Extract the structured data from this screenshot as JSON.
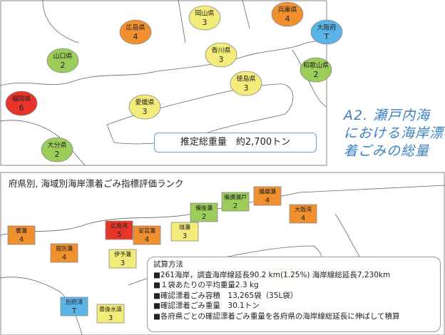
{
  "side_title": "A2. 瀬戸内海における海岸漂着ごみの総量",
  "total_box": "推定総重量　約2,700トン",
  "bottom_title": "府県別, 海域別海岸漂着ごみ指標評価ランク",
  "top_map": {
    "labels": [
      {
        "name": "福岡県",
        "rank": "6",
        "color": "#e8352a"
      },
      {
        "name": "山口県",
        "rank": "2",
        "color": "#9ccc5a"
      },
      {
        "name": "広島県",
        "rank": "4",
        "color": "#f0902e"
      },
      {
        "name": "岡山県",
        "rank": "3",
        "color": "#f3ec7a"
      },
      {
        "name": "兵庫県",
        "rank": "4",
        "color": "#f0902e"
      },
      {
        "name": "大阪府",
        "rank": "T",
        "color": "#5bb3e8"
      },
      {
        "name": "香川県",
        "rank": "3",
        "color": "#f3ec7a"
      },
      {
        "name": "徳島県",
        "rank": "3",
        "color": "#f3ec7a"
      },
      {
        "name": "和歌山県",
        "rank": "2",
        "color": "#9ccc5a"
      },
      {
        "name": "愛媛県",
        "rank": "3",
        "color": "#f3ec7a"
      },
      {
        "name": "大分県",
        "rank": "2",
        "color": "#9ccc5a"
      }
    ]
  },
  "bottom_map": {
    "labels": [
      {
        "name": "響灘",
        "rank": "4",
        "color": "#f0902e"
      },
      {
        "name": "周防灘",
        "rank": "4",
        "color": "#f0902e"
      },
      {
        "name": "別府湾",
        "rank": "T",
        "color": "#5bb3e8"
      },
      {
        "name": "広島湾",
        "rank": "5",
        "color": "#e8352a"
      },
      {
        "name": "安芸灘",
        "rank": "4",
        "color": "#f0902e"
      },
      {
        "name": "伊予灘",
        "rank": "3",
        "color": "#f3ec7a"
      },
      {
        "name": "燧灘",
        "rank": "3",
        "color": "#f3ec7a"
      },
      {
        "name": "備後灘",
        "rank": "2",
        "color": "#9ccc5a"
      },
      {
        "name": "備讃瀬戸",
        "rank": "2",
        "color": "#9ccc5a"
      },
      {
        "name": "播磨灘",
        "rank": "4",
        "color": "#f0902e"
      },
      {
        "name": "大阪湾",
        "rank": "4",
        "color": "#f0902e"
      },
      {
        "name": "紀伊水道",
        "rank": "3",
        "color": "#f3ec7a"
      },
      {
        "name": "豊後水道",
        "rank": "3",
        "color": "#f3ec7a"
      }
    ]
  },
  "method": {
    "title": "試算方法",
    "lines": [
      "■261海岸，調査海岸線延長90.2 km(1.25%) 海岸線総延長7,230km",
      "■１袋あたりの平均重量2.3 kg",
      "■確認漂着ごみ容積　13,265袋（35L袋）",
      "■確認漂着ごみ重量　30.1トン",
      "■各府県ごとの確認漂着ごみ重量を各府県の海岸線総延長に伸ばして積算"
    ]
  }
}
